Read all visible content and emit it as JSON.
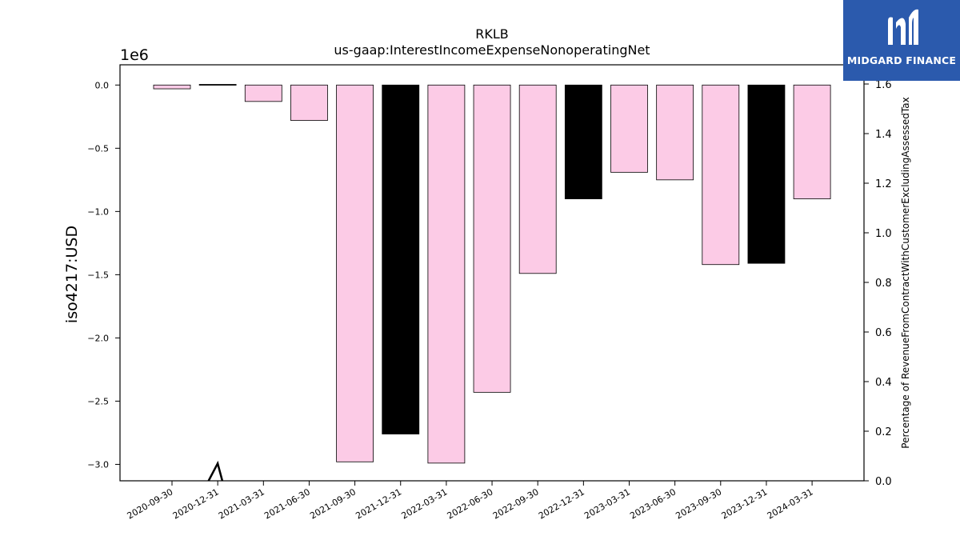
{
  "chart_data": {
    "type": "bar",
    "title": "RKLB",
    "subtitle": "us-gaap:InterestIncomeExpenseNonoperatingNet",
    "ylabel": "iso4217:USD",
    "y_offset_label": "1e6",
    "y2label": "Percentage of RevenueFromContractWithCustomerExcludingAssessedTax",
    "categories": [
      "2020-09-30",
      "2020-12-31",
      "2021-03-31",
      "2021-06-30",
      "2021-09-30",
      "2021-12-31",
      "2022-03-31",
      "2022-06-30",
      "2022-09-30",
      "2022-12-31",
      "2023-03-31",
      "2023-06-30",
      "2023-09-30",
      "2023-12-31",
      "2024-03-31"
    ],
    "values": [
      -0.03,
      0.005,
      -0.13,
      -0.28,
      -2.98,
      -2.76,
      -2.99,
      -2.43,
      -1.49,
      -0.9,
      -0.69,
      -0.75,
      -1.42,
      -1.41,
      -0.9
    ],
    "bar_colors": [
      "#fccbe6",
      "#000000",
      "#fccbe6",
      "#fccbe6",
      "#fccbe6",
      "#000000",
      "#fccbe6",
      "#fccbe6",
      "#fccbe6",
      "#000000",
      "#fccbe6",
      "#fccbe6",
      "#fccbe6",
      "#000000",
      "#fccbe6"
    ],
    "yticks": [
      0.0,
      -0.5,
      -1.0,
      -1.5,
      -2.0,
      -2.5,
      -3.0
    ],
    "ytick_labels": [
      "0.0",
      "−0.5",
      "−1.0",
      "−1.5",
      "−2.0",
      "−2.5",
      "−3.0"
    ],
    "ylim": [
      -3.13,
      0.16
    ],
    "y2ticks": [
      0.0,
      0.2,
      0.4,
      0.6,
      0.8,
      1.0,
      1.2,
      1.4,
      1.6
    ],
    "y2tick_labels": [
      "0.0",
      "0.2",
      "0.4",
      "0.6",
      "0.8",
      "1.0",
      "1.2",
      "1.4",
      "1.6"
    ],
    "y2lim": [
      0.0,
      1.6
    ],
    "secondary_line": {
      "x_index": [
        0.8,
        1.0,
        1.1
      ],
      "values": [
        0.0,
        0.07,
        0.0
      ],
      "color": "#000000"
    }
  },
  "logo": {
    "text": "MIDGARD FINANCE"
  }
}
